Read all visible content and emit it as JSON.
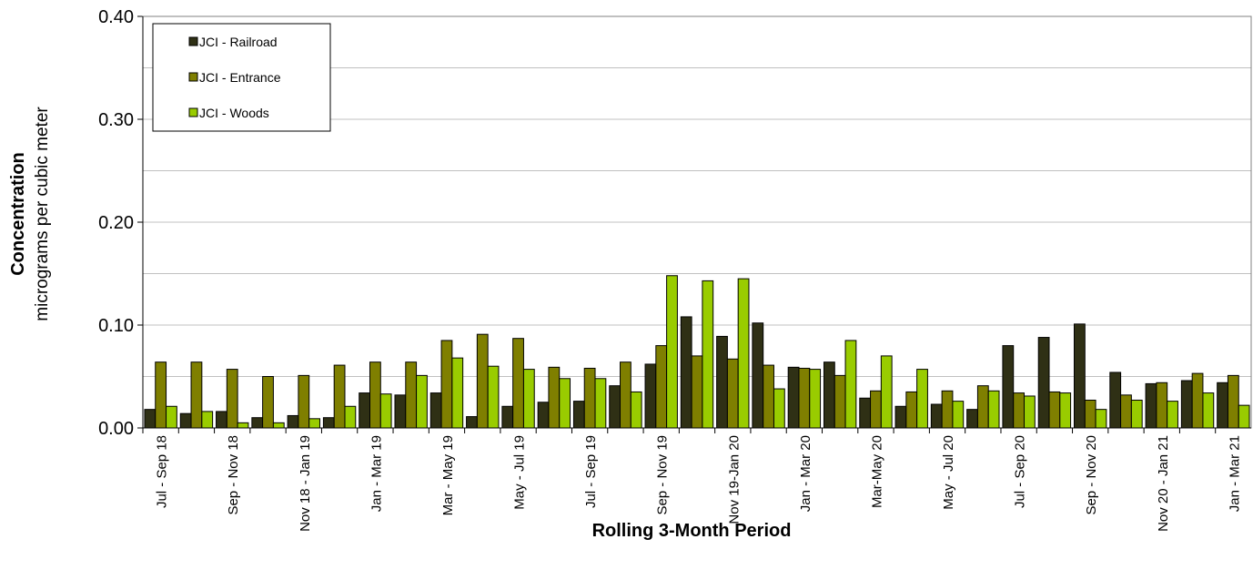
{
  "chart_data": {
    "type": "bar",
    "x_label": "Rolling 3-Month Period",
    "y_label": "Concentration",
    "y_label_sub": "micrograms per cubic meter",
    "categories": [
      "Jul - Sep 18",
      null,
      "Sep - Nov 18",
      null,
      "Nov 18 - Jan 19",
      null,
      "Jan - Mar 19",
      null,
      "Mar - May 19",
      null,
      "May - Jul 19",
      null,
      "Jul - Sep 19",
      null,
      "Sep - Nov 19",
      null,
      "Nov 19-Jan 20",
      null,
      "Jan - Mar 20",
      null,
      "Mar-May 20",
      null,
      "May - Jul 20",
      null,
      "Jul - Sep 20",
      null,
      "Sep - Nov 20",
      null,
      "Nov 20 - Jan 21",
      null,
      "Jan - Mar 21"
    ],
    "series": [
      {
        "name": "JCI - Railroad",
        "color": "#2f3015",
        "values": [
          0.018,
          0.014,
          0.016,
          0.01,
          0.012,
          0.01,
          0.034,
          0.032,
          0.034,
          0.011,
          0.021,
          0.025,
          0.026,
          0.041,
          0.062,
          0.108,
          0.089,
          0.102,
          0.059,
          0.064,
          0.029,
          0.021,
          0.023,
          0.018,
          0.08,
          0.088,
          0.101,
          0.054,
          0.043,
          0.046,
          0.044
        ]
      },
      {
        "name": "JCI - Entrance",
        "color": "#7f7f00",
        "values": [
          0.064,
          0.064,
          0.057,
          0.05,
          0.051,
          0.061,
          0.064,
          0.064,
          0.085,
          0.091,
          0.087,
          0.059,
          0.058,
          0.064,
          0.08,
          0.07,
          0.067,
          0.061,
          0.058,
          0.051,
          0.036,
          0.035,
          0.036,
          0.041,
          0.034,
          0.035,
          0.027,
          0.032,
          0.044,
          0.053,
          0.051
        ]
      },
      {
        "name": "JCI - Woods",
        "color": "#99cc00",
        "values": [
          0.021,
          0.016,
          0.005,
          0.005,
          0.009,
          0.021,
          0.033,
          0.051,
          0.068,
          0.06,
          0.057,
          0.048,
          0.048,
          0.035,
          0.148,
          0.143,
          0.145,
          0.038,
          0.057,
          0.085,
          0.07,
          0.057,
          0.026,
          0.036,
          0.031,
          0.034,
          0.018,
          0.027,
          0.026,
          0.034,
          0.022
        ]
      }
    ],
    "ylim": [
      0,
      0.4
    ],
    "yticks": [
      {
        "value": 0,
        "label": "0.00"
      },
      {
        "value": 0.1,
        "label": "0.10"
      },
      {
        "value": 0.2,
        "label": "0.20"
      },
      {
        "value": 0.3,
        "label": "0.30"
      },
      {
        "value": 0.4,
        "label": "0.40"
      }
    ],
    "ygrid_minor": [
      0.05,
      0.15,
      0.25,
      0.35
    ],
    "grid": true,
    "legend": "top-left"
  }
}
